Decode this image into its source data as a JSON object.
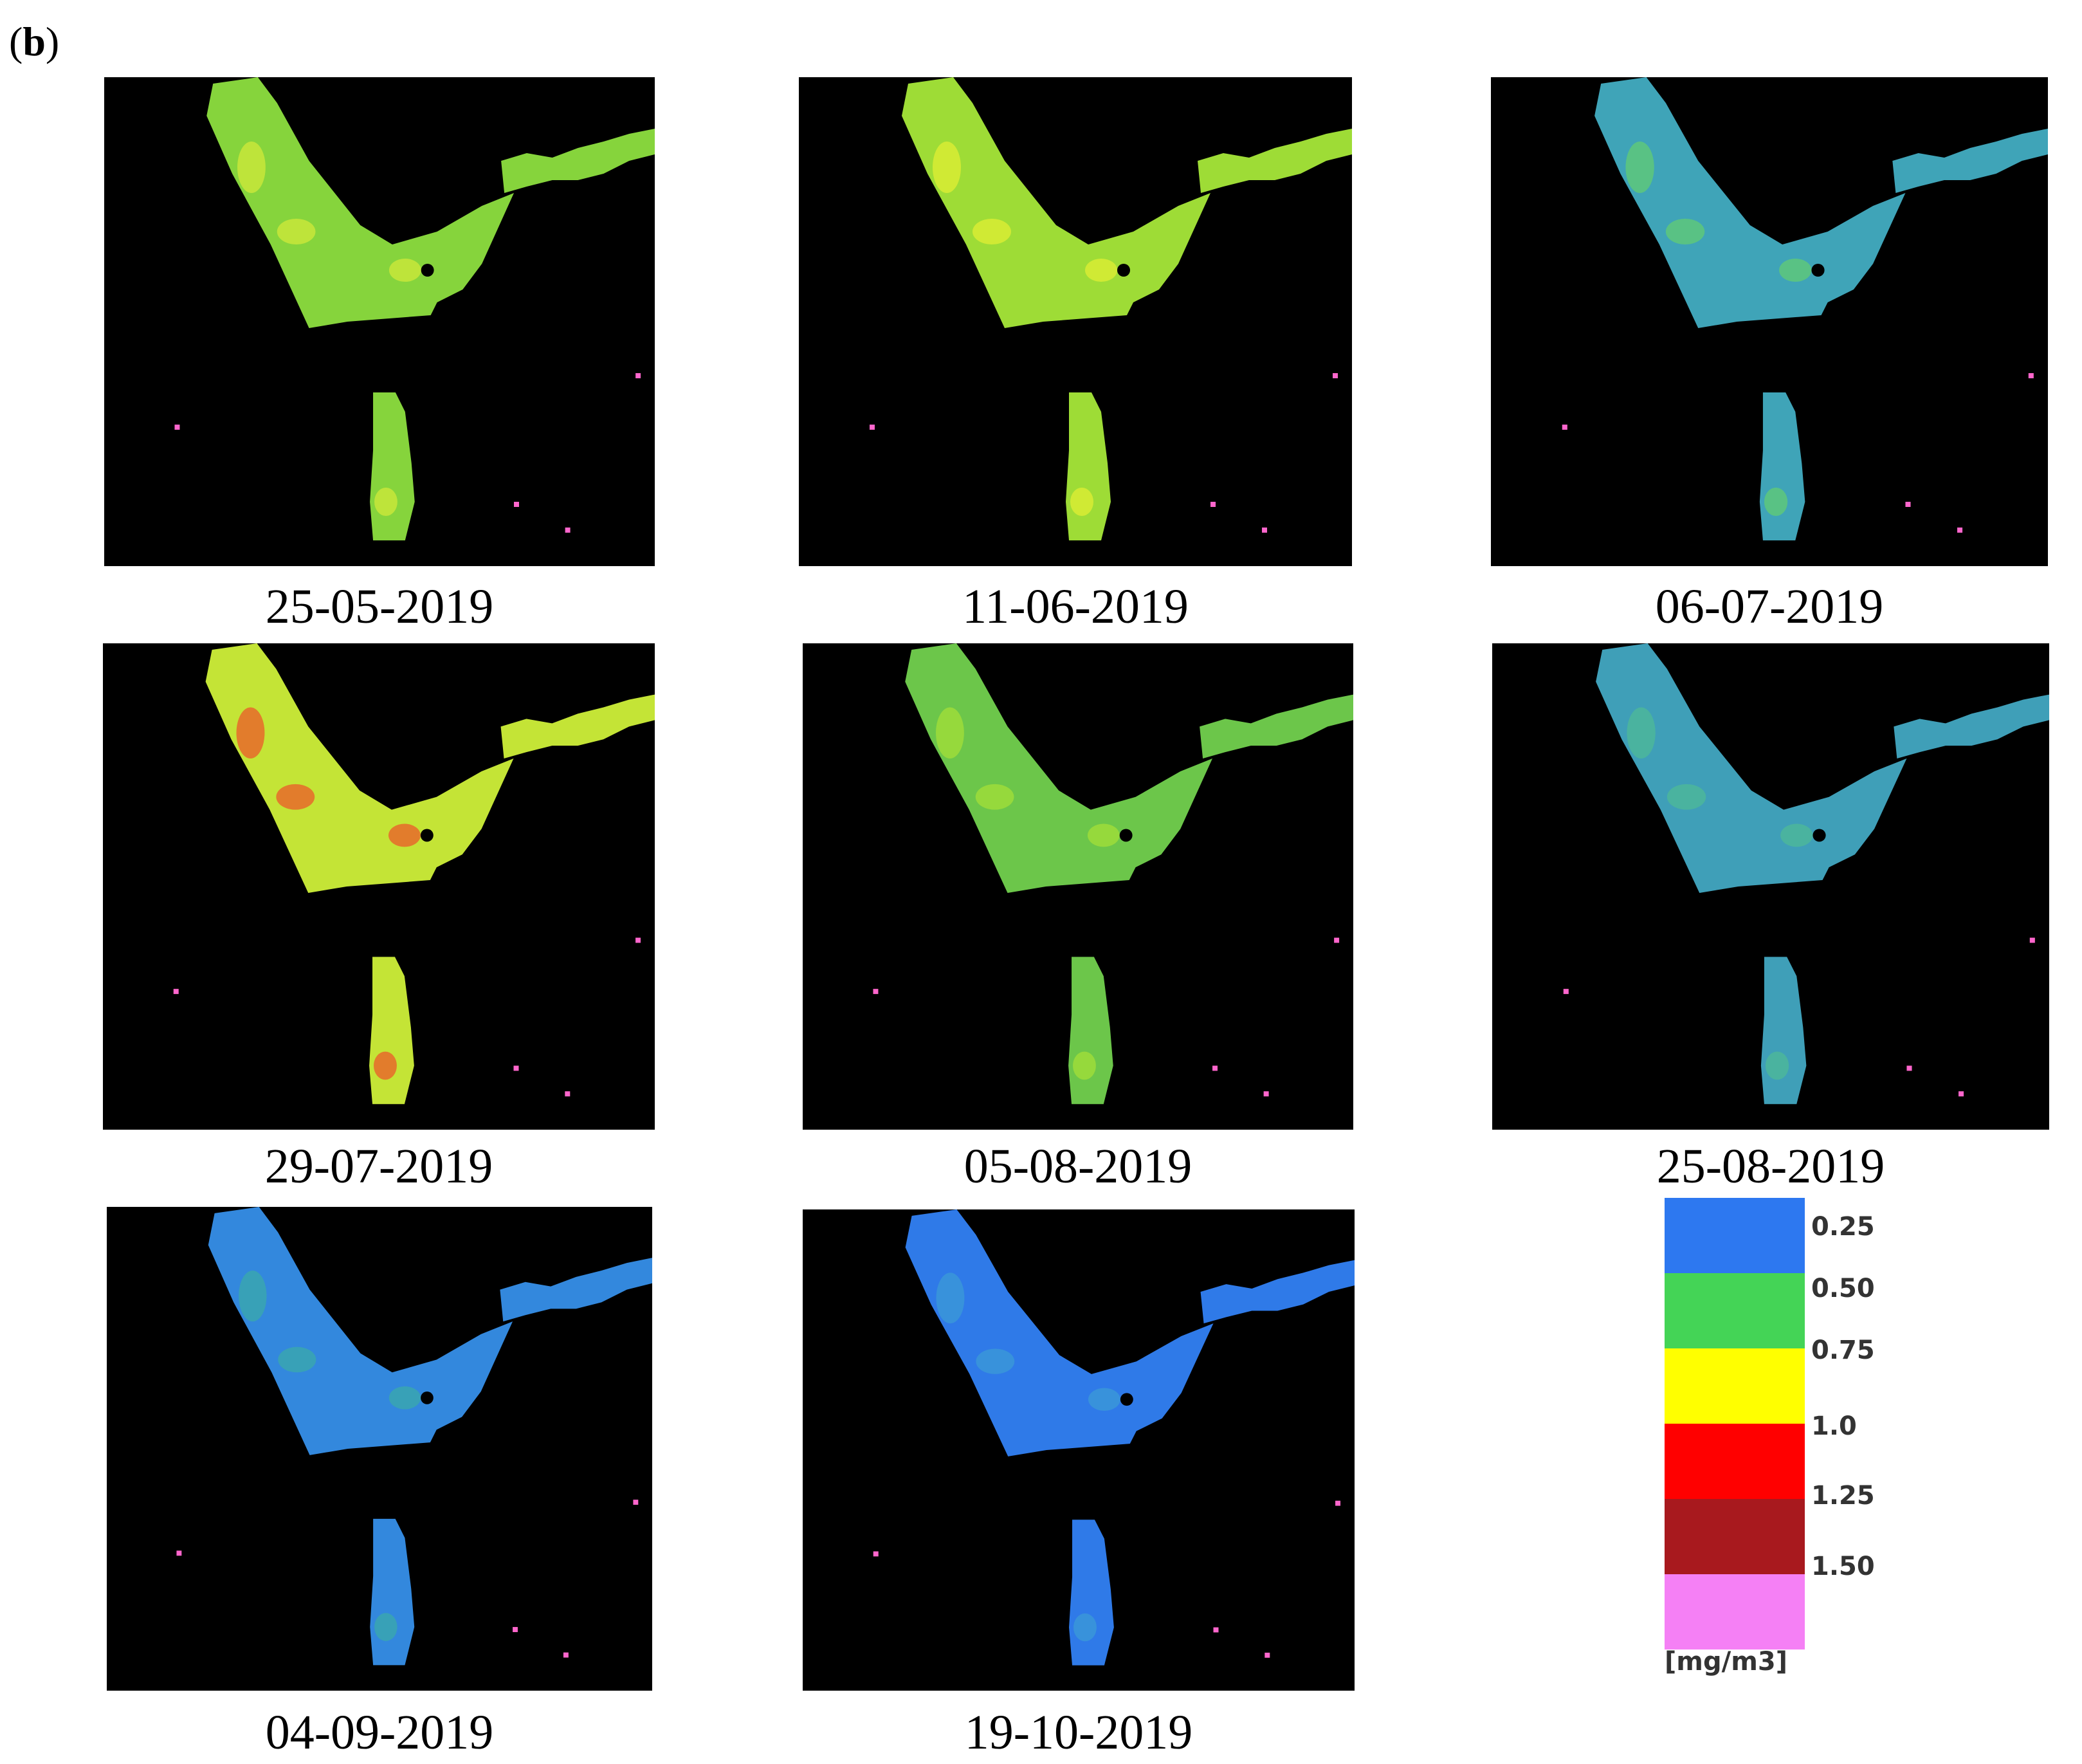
{
  "panel_label": "b",
  "maps": [
    {
      "date": "25-05-2019",
      "main_color": "#86d43c",
      "spot_color": "#c8e63a",
      "speckle": "#ff66cc"
    },
    {
      "date": "11-06-2019",
      "main_color": "#9edc36",
      "spot_color": "#d8ec34",
      "speckle": "#ff66cc"
    },
    {
      "date": "06-07-2019",
      "main_color": "#3fa4b8",
      "spot_color": "#5ec87a",
      "speckle": "#ff66cc"
    },
    {
      "date": "29-07-2019",
      "main_color": "#c4e436",
      "spot_color": "#e86a2a",
      "speckle": "#ff66cc"
    },
    {
      "date": "05-08-2019",
      "main_color": "#6cc64a",
      "spot_color": "#9edc3a",
      "speckle": "#ff66cc"
    },
    {
      "date": "25-08-2019",
      "main_color": "#3f9fb8",
      "spot_color": "#4cb69a",
      "speckle": "#ff66cc"
    },
    {
      "date": "04-09-2019",
      "main_color": "#3388dd",
      "spot_color": "#3aa6b0",
      "speckle": "#ff66cc"
    },
    {
      "date": "19-10-2019",
      "main_color": "#2f7ae8",
      "spot_color": "#3a96d8",
      "speckle": "#ff66cc"
    }
  ],
  "legend": {
    "unit": "[mg/m3]",
    "swatches": [
      "#2d78f0",
      "#44d456",
      "#ffff00",
      "#ff0000",
      "#a8191e",
      "#f580f5"
    ],
    "ticks": [
      "0.25",
      "0.50",
      "0.75",
      "1.0",
      "1.25",
      "1.50"
    ]
  }
}
